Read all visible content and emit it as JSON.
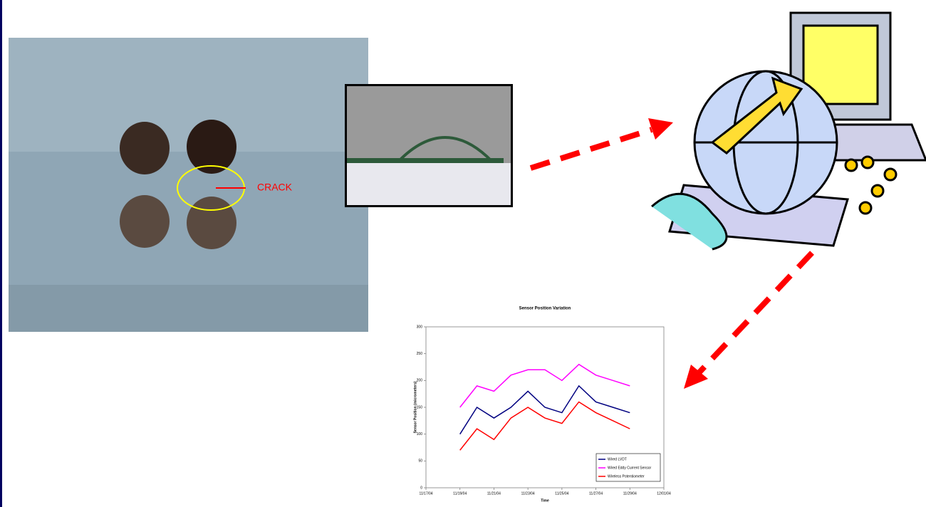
{
  "annotation": "CRACK",
  "chart_data": {
    "type": "line",
    "title": "Sensor Position Variation",
    "x_label": "Time",
    "y_label": "Sensor Position (micrometers)",
    "x": [
      "11/19/04",
      "11/20/04",
      "11/21/04",
      "11/22/04",
      "11/23/04",
      "11/24/04",
      "11/25/04",
      "11/26/04",
      "11/27/04",
      "11/28/04",
      "11/29/04"
    ],
    "series": [
      {
        "name": "Wired LVDT",
        "color": "#000080",
        "values": [
          100,
          150,
          130,
          150,
          180,
          150,
          140,
          190,
          160,
          150,
          140
        ]
      },
      {
        "name": "Wired Eddy Current Sensor",
        "color": "#ff00ff",
        "values": [
          150,
          190,
          180,
          210,
          220,
          220,
          200,
          230,
          210,
          200,
          190
        ]
      },
      {
        "name": "Wireless Potentiometer",
        "color": "#ff0000",
        "values": [
          70,
          110,
          90,
          130,
          150,
          130,
          120,
          160,
          140,
          125,
          110
        ]
      }
    ],
    "xlim": [
      "11/17/04",
      "12/01/04"
    ],
    "xticks": [
      "11/17/04",
      "11/19/04",
      "11/21/04",
      "11/23/04",
      "11/25/04",
      "11/27/04",
      "11/29/04",
      "12/01/04"
    ],
    "ylim": [
      0,
      300
    ],
    "yticks": [
      0,
      50,
      100,
      150,
      200,
      250,
      300
    ],
    "legend": "lower right"
  }
}
